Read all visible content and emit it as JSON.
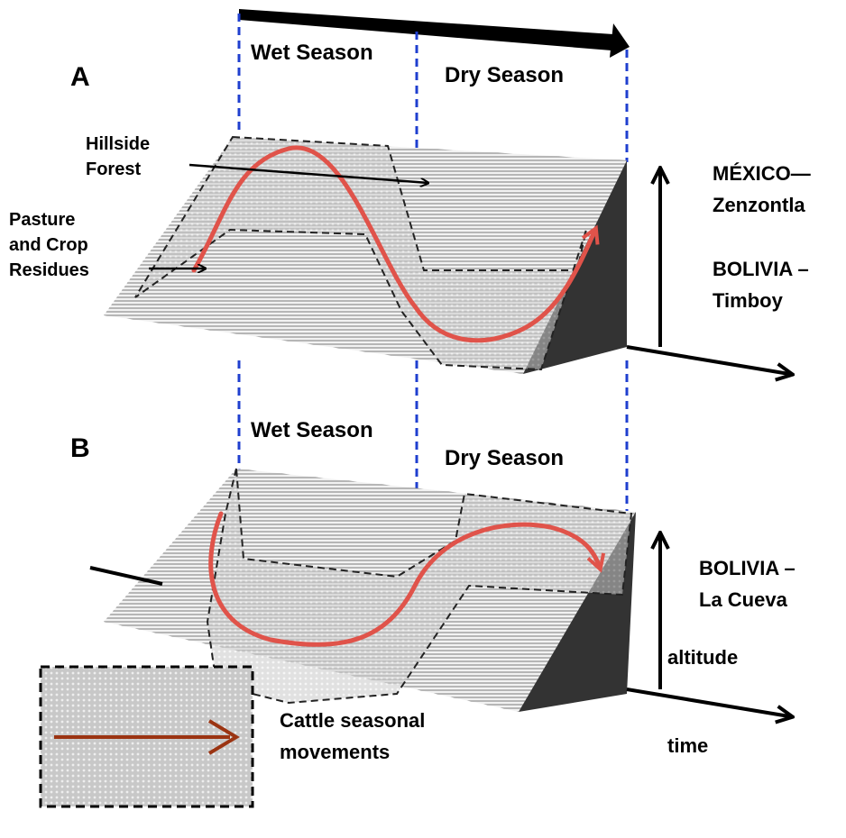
{
  "top_arrow": {},
  "panels": [
    {
      "label": "A",
      "wet_season": "Wet Season",
      "dry_season": "Dry Season",
      "hillside": [
        "Hillside",
        "Forest"
      ],
      "pasture": [
        "Pasture",
        "and Crop",
        "Residues"
      ],
      "regions": [
        [
          "MÉXICO—",
          "Zenzontla"
        ],
        [
          "BOLIVIA –",
          "Timboy"
        ]
      ]
    },
    {
      "label": "B",
      "wet_season": "Wet Season",
      "dry_season": "Dry Season",
      "regions": [
        [
          "BOLIVIA –",
          "La Cueva"
        ]
      ],
      "axis_y": "altitude",
      "axis_x": "time"
    }
  ],
  "legend": [
    "Cattle seasonal",
    "movements"
  ]
}
